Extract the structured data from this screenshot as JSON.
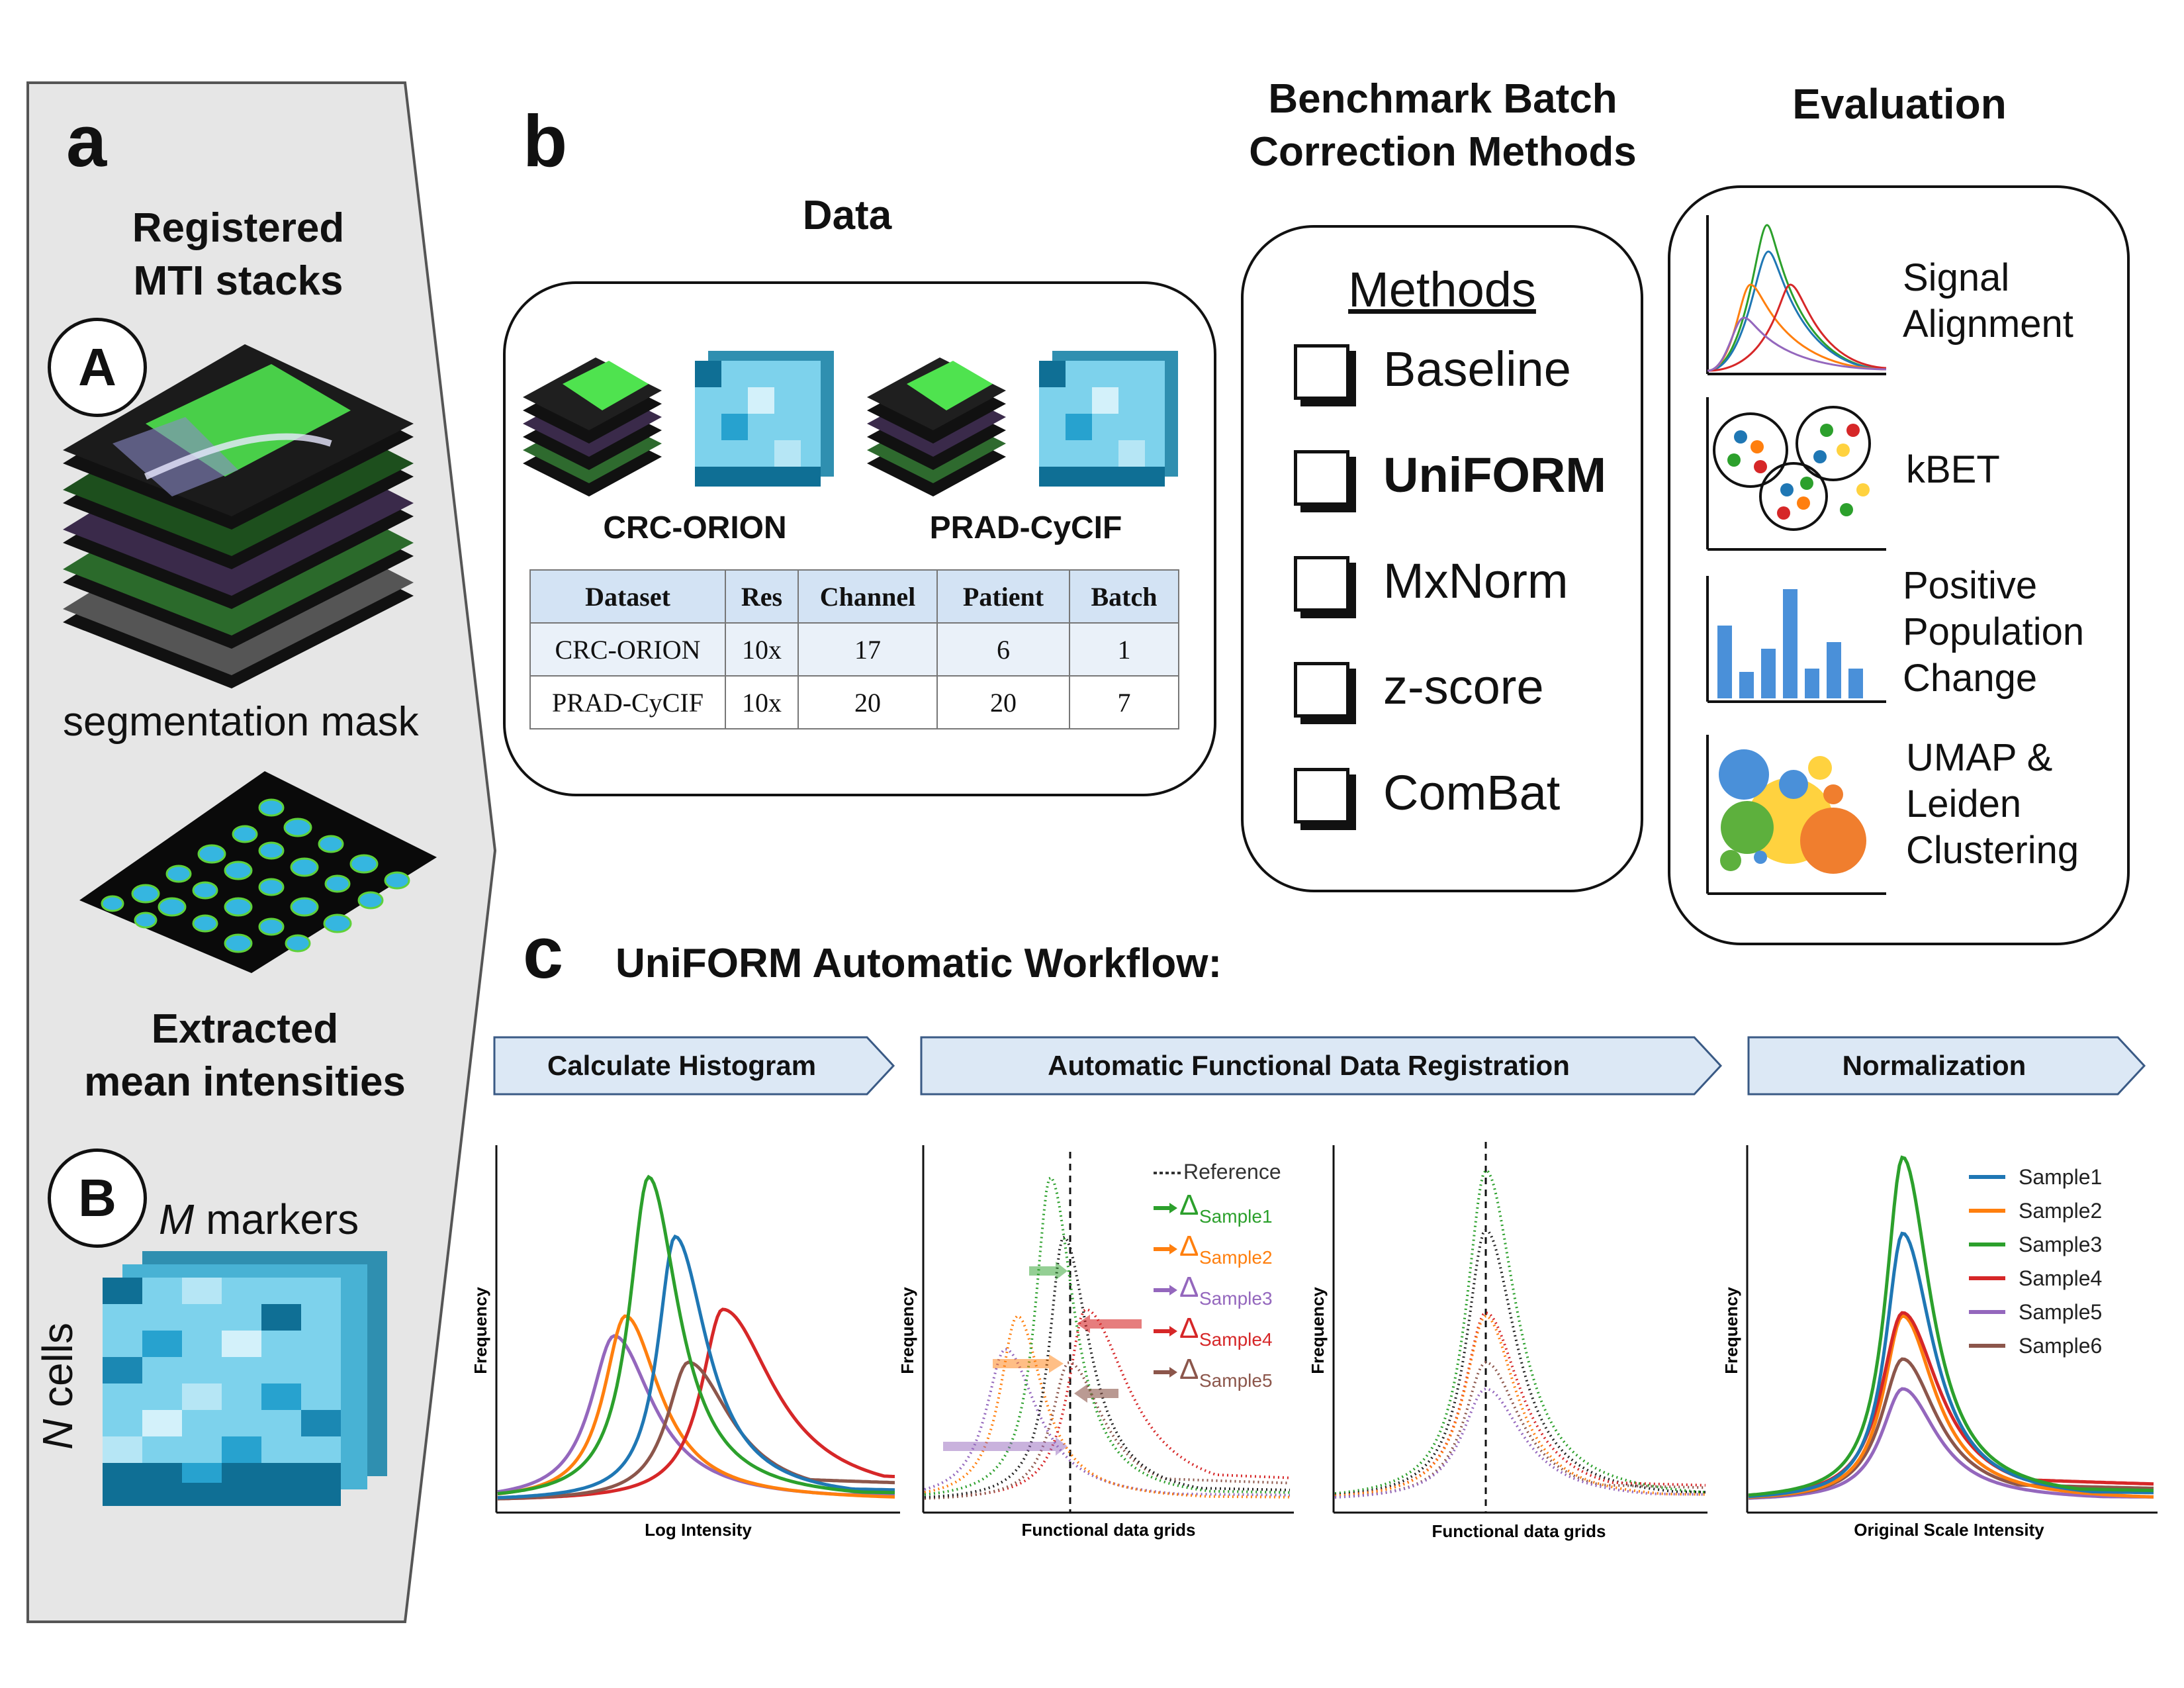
{
  "panel_a": {
    "letter": "a",
    "title_line1": "Registered",
    "title_line2": "MTI stacks",
    "circle_A": "A",
    "seg_label": "segmentation mask",
    "extracted_line1": "Extracted",
    "extracted_line2": "mean intensities",
    "circle_B": "B",
    "m_label": "M",
    "m_suffix": " markers",
    "n_label": "N",
    "n_suffix": " cells"
  },
  "panel_b": {
    "letter": "b",
    "data_title": "Data",
    "dataset1_name": "CRC-ORION",
    "dataset2_name": "PRAD-CyCIF",
    "table": {
      "headers": [
        "Dataset",
        "Res",
        "Channel",
        "Patient",
        "Batch"
      ],
      "rows": [
        [
          "CRC-ORION",
          "10x",
          "17",
          "6",
          "1"
        ],
        [
          "PRAD-CyCIF",
          "10x",
          "20",
          "20",
          "7"
        ]
      ]
    },
    "benchmark_line1": "Benchmark Batch",
    "benchmark_line2": "Correction Methods",
    "methods_title": "Methods",
    "methods": [
      "Baseline",
      "UniFORM",
      "MxNorm",
      "z-score",
      "ComBat"
    ],
    "evaluation_title": "Evaluation",
    "eval_items": {
      "signal_l1": "Signal",
      "signal_l2": "Alignment",
      "kbet": "kBET",
      "ppc_l1": "Positive",
      "ppc_l2": "Population",
      "ppc_l3": "Change",
      "umap_l1": "UMAP &",
      "umap_l2": "Leiden",
      "umap_l3": "Clustering"
    }
  },
  "panel_c": {
    "letter": "c",
    "title": "UniFORM Automatic Workflow:",
    "stages": [
      "Calculate Histogram",
      "Automatic Functional Data Registration",
      "Normalization"
    ],
    "plots": {
      "p1_xlabel": "Log Intensity",
      "p2_xlabel": "Functional data grids",
      "p3_xlabel": "Functional data grids",
      "p4_xlabel": "Original Scale Intensity",
      "ylabel": "Frequency"
    },
    "reference_label": "Reference",
    "delta_symbol": "Δ",
    "delta_labels": [
      "Sample1",
      "Sample2",
      "Sample3",
      "Sample4",
      "Sample5"
    ],
    "legend": [
      "Sample1",
      "Sample2",
      "Sample3",
      "Sample4",
      "Sample5",
      "Sample6"
    ],
    "colors": {
      "Sample1": "#1f77b4",
      "Sample2": "#ff7f0e",
      "Sample3": "#2ca02c",
      "Sample4": "#d62728",
      "Sample5": "#9467bd",
      "Sample6": "#8c564b"
    }
  }
}
